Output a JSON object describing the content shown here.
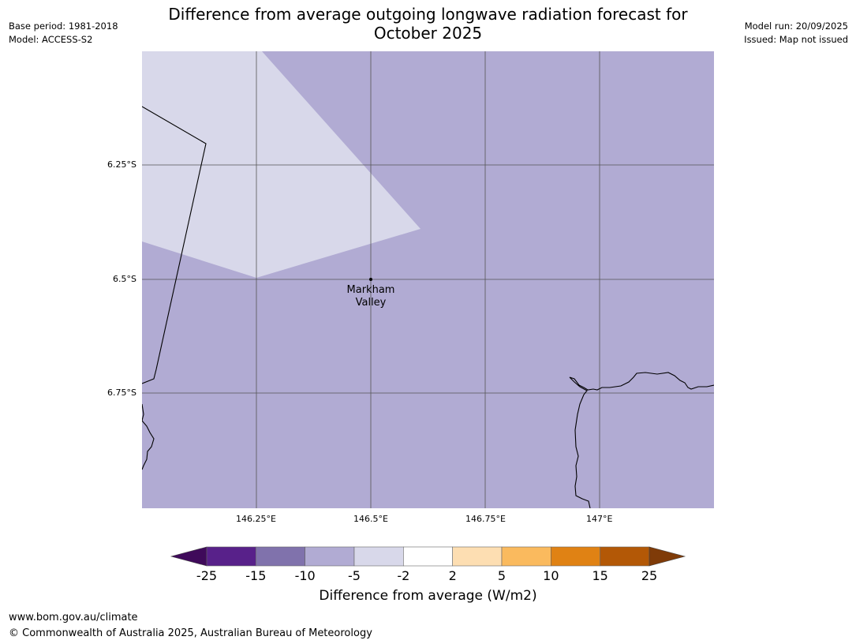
{
  "header": {
    "title_line1": "Difference from average outgoing longwave radiation forecast for",
    "title_line2": "October 2025",
    "base_period": "Base period: 1981-2018",
    "model": "Model: ACCESS-S2",
    "model_run": "Model run: 20/09/2025",
    "issued": "Issued: Map not issued"
  },
  "map": {
    "place_label_line1": "Markham",
    "place_label_line2": "Valley",
    "lat_labels": [
      "6.25°S",
      "6.5°S",
      "6.75°S"
    ],
    "lon_labels": [
      "146.25°E",
      "146.5°E",
      "146.75°E",
      "147°E"
    ],
    "colors": {
      "base_fill": "#b1abd3",
      "light_fill": "#d8d8ea",
      "gridline": "#555555",
      "coastline": "#000000"
    }
  },
  "colorbar": {
    "ticks": [
      "-25",
      "-15",
      "-10",
      "-5",
      "-2",
      "2",
      "5",
      "10",
      "15",
      "25"
    ],
    "colors": [
      "#3f0a5a",
      "#58218a",
      "#8072ac",
      "#b1abd3",
      "#d8d8ea",
      "#ffffff",
      "#fddeb2",
      "#faba5e",
      "#e08214",
      "#b35806",
      "#7f3b08"
    ],
    "label": "Difference from average (W/m2)"
  },
  "footer": {
    "url": "www.bom.gov.au/climate",
    "copyright": "© Commonwealth of Australia 2025, Australian Bureau of Meteorology"
  }
}
